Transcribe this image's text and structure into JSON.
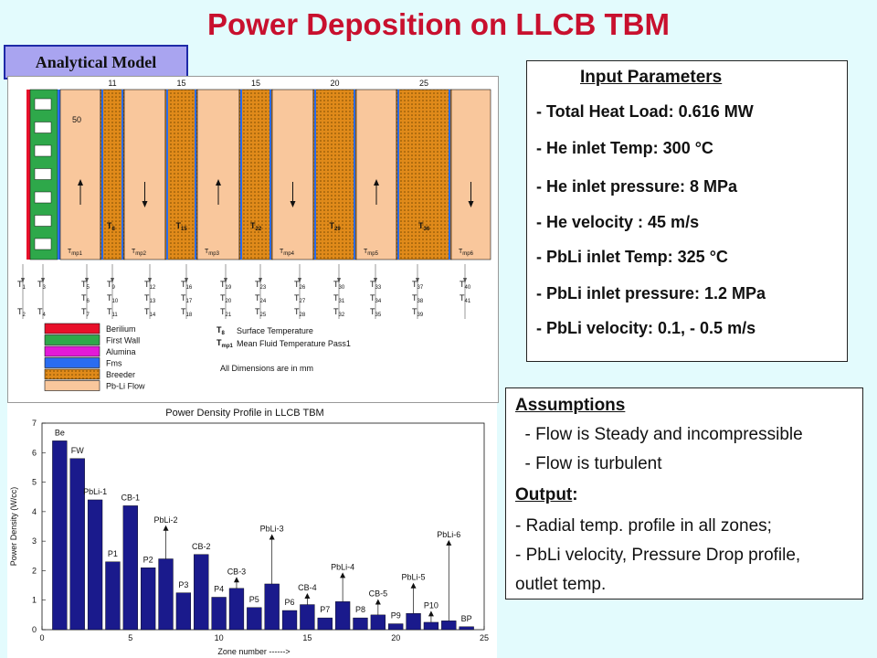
{
  "title": "Power Deposition on LLCB TBM",
  "model_label": "Analytical Model",
  "schematic": {
    "top_dims": [
      "11",
      "15",
      "15",
      "20",
      "25"
    ],
    "first_dim": "50",
    "surface_temps": [
      "T",
      "T",
      "T",
      "T",
      "T"
    ],
    "surface_subs": [
      "8",
      "15",
      "22",
      "29",
      "36"
    ],
    "fluid_temps": [
      "T",
      "T",
      "T",
      "T",
      "T",
      "T"
    ],
    "fluid_subs": [
      "mp1",
      "mp2",
      "mp3",
      "mp4",
      "mp5",
      "mp6"
    ],
    "flow_arrows": [
      "up",
      "down",
      "up",
      "down",
      "up",
      "down"
    ],
    "node_rows": [
      [
        "T1",
        "T3",
        "T5",
        "T9",
        "T12",
        "T16",
        "T19",
        "T23",
        "T26",
        "T30",
        "T33",
        "T37",
        "T40"
      ],
      [
        "T6",
        "T10",
        "T13",
        "T17",
        "T20",
        "T24",
        "T27",
        "T31",
        "T34",
        "T38",
        "T41"
      ],
      [
        "T2",
        "T4",
        "T7",
        "T11",
        "T14",
        "T18",
        "T21",
        "T25",
        "T28",
        "T32",
        "T35",
        "T39"
      ]
    ],
    "legend": [
      {
        "label": "Berilium",
        "color": "#e8102a"
      },
      {
        "label": "First Wall",
        "color": "#2ea84a"
      },
      {
        "label": "Alumina",
        "color": "#e21ad8"
      },
      {
        "label": "Fms",
        "color": "#2a6cf0"
      },
      {
        "label": "Breeder",
        "color": "#e08a1a"
      },
      {
        "label": "Pb-Li Flow",
        "color": "#f9c79c"
      }
    ],
    "legend_notes": {
      "surface_sym": "T",
      "surface_sub": "8",
      "surface": "Surface Temperature",
      "fluid_sym": "T",
      "fluid_sub": "mp1",
      "fluid": "Mean Fluid Temperature Pass1",
      "dims": "All Dimensions are in mm"
    }
  },
  "params": {
    "title": "Input Parameters",
    "lines": [
      "- Total Heat Load: 0.616 MW",
      "- He inlet Temp: 300 °C",
      "- He inlet pressure:  8 MPa",
      "- He velocity : 45 m/s",
      "- PbLi inlet Temp: 325 °C",
      "- PbLi inlet pressure:  1.2 MPa",
      "- PbLi velocity: 0.1, - 0.5 m/s"
    ]
  },
  "assumptions": {
    "head": "Assumptions",
    "items": [
      "  - Flow is Steady and incompressible",
      "  - Flow is turbulent"
    ],
    "output_head": "Output",
    "output_colon": ":",
    "outputs": [
      "- Radial temp. profile in all zones;",
      "- PbLi velocity, Pressure Drop profile,",
      "outlet temp."
    ]
  },
  "chart_data": {
    "type": "bar",
    "title": "Power Density Profile in LLCB TBM",
    "xlabel": "Zone number ------>",
    "ylabel": "Power Density  (W/cc)",
    "xlim": [
      0,
      25
    ],
    "ylim": [
      0,
      7
    ],
    "xticks": [
      0,
      5,
      10,
      15,
      20,
      25
    ],
    "yticks": [
      0,
      1,
      2,
      3,
      4,
      5,
      6,
      7
    ],
    "color": "#1a1a8c",
    "x": [
      1,
      2,
      3,
      4,
      5,
      6,
      7,
      8,
      9,
      10,
      11,
      12,
      13,
      14,
      15,
      16,
      17,
      18,
      19,
      20,
      21,
      22,
      23,
      24
    ],
    "values": [
      6.4,
      5.8,
      4.4,
      2.3,
      4.2,
      2.1,
      2.4,
      1.25,
      2.55,
      1.1,
      1.4,
      0.75,
      1.55,
      0.65,
      0.85,
      0.4,
      0.95,
      0.4,
      0.5,
      0.2,
      0.55,
      0.25,
      0.3,
      0.1
    ],
    "labels": [
      {
        "text": "Be",
        "x": 1,
        "y": 6.55,
        "arrow": false
      },
      {
        "text": "FW",
        "x": 2,
        "y": 5.95,
        "arrow": false
      },
      {
        "text": "PbLi-1",
        "x": 3,
        "y": 4.55,
        "arrow": false
      },
      {
        "text": "P1",
        "x": 4,
        "y": 2.45,
        "arrow": false
      },
      {
        "text": "CB-1",
        "x": 5,
        "y": 4.35,
        "arrow": false
      },
      {
        "text": "P2",
        "x": 6,
        "y": 2.25,
        "arrow": false
      },
      {
        "text": "PbLi-2",
        "x": 7,
        "y": 3.6,
        "arrow": true
      },
      {
        "text": "P3",
        "x": 8,
        "y": 1.4,
        "arrow": false
      },
      {
        "text": "CB-2",
        "x": 9,
        "y": 2.7,
        "arrow": false
      },
      {
        "text": "P4",
        "x": 10,
        "y": 1.25,
        "arrow": false
      },
      {
        "text": "CB-3",
        "x": 11,
        "y": 1.85,
        "arrow": true
      },
      {
        "text": "P5",
        "x": 12,
        "y": 0.9,
        "arrow": false
      },
      {
        "text": "PbLi-3",
        "x": 13,
        "y": 3.3,
        "arrow": true
      },
      {
        "text": "P6",
        "x": 14,
        "y": 0.8,
        "arrow": false
      },
      {
        "text": "CB-4",
        "x": 15,
        "y": 1.3,
        "arrow": true
      },
      {
        "text": "P7",
        "x": 16,
        "y": 0.55,
        "arrow": false
      },
      {
        "text": "PbLi-4",
        "x": 17,
        "y": 2.0,
        "arrow": true
      },
      {
        "text": "P8",
        "x": 18,
        "y": 0.55,
        "arrow": false
      },
      {
        "text": "CB-5",
        "x": 19,
        "y": 1.1,
        "arrow": true
      },
      {
        "text": "P9",
        "x": 20,
        "y": 0.35,
        "arrow": false
      },
      {
        "text": "PbLi-5",
        "x": 21,
        "y": 1.65,
        "arrow": true
      },
      {
        "text": "P10",
        "x": 22,
        "y": 0.7,
        "arrow": true
      },
      {
        "text": "PbLi-6",
        "x": 23,
        "y": 3.1,
        "arrow": true
      },
      {
        "text": "BP",
        "x": 24,
        "y": 0.25,
        "arrow": false
      }
    ]
  }
}
